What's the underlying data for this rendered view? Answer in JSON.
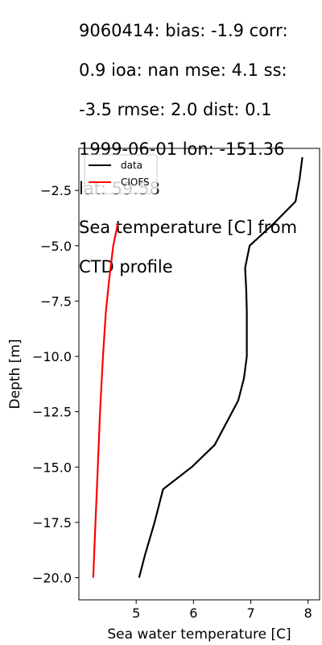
{
  "chart_data": {
    "type": "line",
    "title_lines": [
      "9060414: bias: -1.9  corr:",
      "0.9  ioa: nan  mse: 4.1  ss:",
      "-3.5  rmse: 2.0  dist: 0.1",
      "1999-06-01 lon: -151.36",
      "lat: 59.58",
      "Sea temperature [C] from",
      "CTD profile"
    ],
    "xlabel": "Sea water temperature [C]",
    "ylabel": "Depth [m]",
    "xlim": [
      4.0,
      8.2
    ],
    "ylim": [
      -21.0,
      -0.6
    ],
    "xticks": [
      5,
      6,
      7,
      8
    ],
    "xtick_labels": [
      "5",
      "6",
      "7",
      "8"
    ],
    "yticks": [
      -2.5,
      -5.0,
      -7.5,
      -10.0,
      -12.5,
      -15.0,
      -17.5,
      -20.0
    ],
    "ytick_labels": [
      "−2.5",
      "−5.0",
      "−7.5",
      "−10.0",
      "−12.5",
      "−15.0",
      "−17.5",
      "−20.0"
    ],
    "grid": false,
    "legend_position": "top-left",
    "series": [
      {
        "name": "data",
        "color": "#000000",
        "x": [
          7.9,
          7.85,
          7.78,
          7.4,
          6.98,
          6.9,
          6.92,
          6.93,
          6.93,
          6.93,
          6.88,
          6.78,
          6.37,
          5.97,
          5.47,
          5.32,
          5.15,
          5.05
        ],
        "y": [
          -1.0,
          -2.0,
          -3.0,
          -4.0,
          -5.0,
          -6.0,
          -7.0,
          -8.0,
          -9.0,
          -10.0,
          -11.0,
          -12.0,
          -14.0,
          -15.0,
          -16.0,
          -17.5,
          -19.0,
          -20.0
        ]
      },
      {
        "name": "CIOFS",
        "color": "#ff0000",
        "x": [
          4.68,
          4.6,
          4.53,
          4.47,
          4.42,
          4.37,
          4.33,
          4.29,
          4.25
        ],
        "y": [
          -4.0,
          -5.0,
          -6.5,
          -8.0,
          -10.0,
          -12.5,
          -15.0,
          -17.5,
          -20.0
        ]
      }
    ]
  }
}
